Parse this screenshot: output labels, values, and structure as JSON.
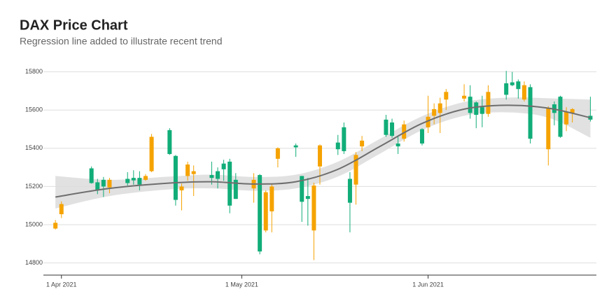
{
  "chart_data": {
    "type": "candlestick",
    "title": "DAX Price Chart",
    "subtitle": "Regression line added to illustrate recent trend",
    "x": [
      "2021-03-31",
      "2021-04-01",
      "2021-04-06",
      "2021-04-07",
      "2021-04-08",
      "2021-04-09",
      "2021-04-12",
      "2021-04-13",
      "2021-04-14",
      "2021-04-15",
      "2021-04-16",
      "2021-04-19",
      "2021-04-20",
      "2021-04-21",
      "2021-04-22",
      "2021-04-23",
      "2021-04-26",
      "2021-04-27",
      "2021-04-28",
      "2021-04-29",
      "2021-04-30",
      "2021-05-03",
      "2021-05-04",
      "2021-05-05",
      "2021-05-06",
      "2021-05-07",
      "2021-05-10",
      "2021-05-11",
      "2021-05-12",
      "2021-05-13",
      "2021-05-14",
      "2021-05-17",
      "2021-05-18",
      "2021-05-19",
      "2021-05-20",
      "2021-05-21",
      "2021-05-25",
      "2021-05-26",
      "2021-05-27",
      "2021-05-28",
      "2021-05-31",
      "2021-06-01",
      "2021-06-02",
      "2021-06-03",
      "2021-06-04",
      "2021-06-07",
      "2021-06-08",
      "2021-06-09",
      "2021-06-10",
      "2021-06-11",
      "2021-06-14",
      "2021-06-15",
      "2021-06-16",
      "2021-06-17",
      "2021-06-18",
      "2021-06-21",
      "2021-06-22",
      "2021-06-23",
      "2021-06-24",
      "2021-06-25",
      "2021-06-28"
    ],
    "open": [
      14980,
      15055,
      15295,
      15222,
      15235,
      15195,
      15240,
      15245,
      15245,
      15235,
      15280,
      15495,
      15360,
      15180,
      15255,
      15265,
      15260,
      15280,
      15320,
      15330,
      15235,
      15190,
      15260,
      14970,
      15070,
      15345,
      15415,
      15255,
      15150,
      14970,
      15305,
      15430,
      15510,
      15240,
      15210,
      15410,
      15550,
      15535,
      15425,
      15450,
      15500,
      15510,
      15570,
      15585,
      15655,
      15660,
      15670,
      15640,
      15615,
      15580,
      15740,
      15745,
      15750,
      15655,
      15720,
      15395,
      15630,
      15670,
      15525,
      15585,
      15570
    ],
    "high": [
      15025,
      15122,
      15305,
      15240,
      15250,
      15245,
      15275,
      15285,
      15280,
      15265,
      15475,
      15505,
      15365,
      15215,
      15330,
      15310,
      15330,
      15300,
      15340,
      15345,
      15270,
      15270,
      15265,
      15180,
      15215,
      15405,
      15425,
      15255,
      15245,
      15220,
      15420,
      15470,
      15535,
      15275,
      15380,
      15465,
      15575,
      15555,
      15460,
      15545,
      15505,
      15675,
      15635,
      15665,
      15710,
      15735,
      15730,
      15645,
      15675,
      15730,
      15805,
      15800,
      15760,
      15750,
      15735,
      15620,
      15645,
      15675,
      15615,
      15610,
      15670
    ],
    "low": [
      14975,
      15035,
      15215,
      15160,
      15145,
      15165,
      15205,
      15210,
      15180,
      15230,
      15275,
      15365,
      15100,
      15075,
      15230,
      15150,
      15210,
      15190,
      15230,
      15060,
      15135,
      15115,
      14845,
      14960,
      14960,
      15300,
      15355,
      15015,
      14995,
      14815,
      15210,
      15365,
      15370,
      14960,
      15105,
      15385,
      15460,
      15455,
      15370,
      15435,
      15415,
      15480,
      15525,
      15480,
      15600,
      15645,
      15555,
      15505,
      15510,
      15565,
      15655,
      15725,
      15660,
      15645,
      15425,
      15310,
      15520,
      15455,
      15490,
      15535,
      15540
    ],
    "close": [
      15010,
      15108,
      15218,
      15180,
      15200,
      15235,
      15218,
      15232,
      15210,
      15255,
      15460,
      15370,
      15130,
      15200,
      15315,
      15280,
      15245,
      15240,
      15290,
      15100,
      15135,
      15235,
      14860,
      15170,
      15200,
      15400,
      15405,
      15120,
      15135,
      15205,
      15415,
      15395,
      15385,
      15115,
      15365,
      15440,
      15470,
      15465,
      15410,
      15525,
      15425,
      15565,
      15605,
      15635,
      15695,
      15675,
      15585,
      15575,
      15580,
      15695,
      15680,
      15730,
      15710,
      15730,
      15450,
      15610,
      15585,
      15460,
      15590,
      15605,
      15550
    ],
    "up_color": "#f5a300",
    "down_color": "#11ad79",
    "trend_x": [
      "2021-03-31",
      "2021-04-09",
      "2021-04-19",
      "2021-04-26",
      "2021-05-03",
      "2021-05-10",
      "2021-05-17",
      "2021-05-24",
      "2021-05-31",
      "2021-06-07",
      "2021-06-14",
      "2021-06-21",
      "2021-06-28"
    ],
    "trend": [
      15145,
      15190,
      15218,
      15225,
      15213,
      15225,
      15290,
      15410,
      15530,
      15605,
      15625,
      15610,
      15560
    ],
    "trend_lower": [
      15085,
      15150,
      15185,
      15190,
      15178,
      15190,
      15252,
      15372,
      15495,
      15570,
      15588,
      15560,
      15455
    ],
    "trend_upper": [
      15255,
      15235,
      15252,
      15262,
      15250,
      15262,
      15330,
      15450,
      15568,
      15642,
      15665,
      15662,
      15655
    ],
    "trend_color": "#6e6e6e",
    "band_color": "#dcdcdc",
    "xlim": [
      "2021-03-29",
      "2021-06-29"
    ],
    "xticks": [
      {
        "value": "2021-04-01",
        "label": "1 Apr 2021"
      },
      {
        "value": "2021-05-01",
        "label": "1 May 2021"
      },
      {
        "value": "2021-06-01",
        "label": "1 Jun 2021"
      }
    ],
    "ylim": [
      14740,
      15850
    ],
    "yticks": [
      14800,
      15000,
      15200,
      15400,
      15600,
      15800
    ],
    "grid": true
  }
}
